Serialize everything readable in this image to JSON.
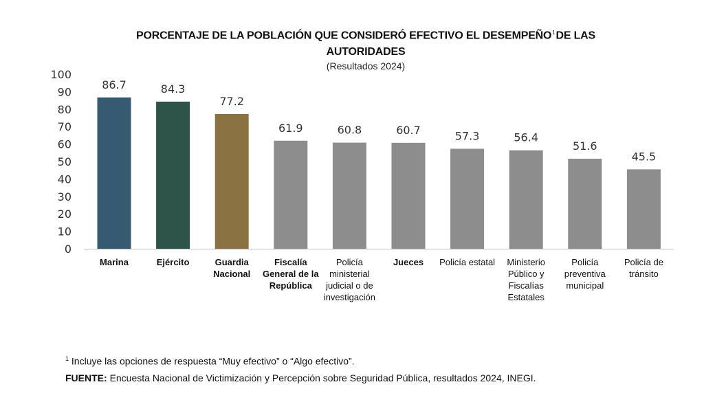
{
  "title": {
    "line1": "PORCENTAJE DE LA POBLACIÓN QUE CONSIDERÓ EFECTIVO EL DESEMPEÑO",
    "footnote_mark": "1",
    "line1_end": "DE LAS",
    "line2": "AUTORIDADES"
  },
  "subtitle": "(Resultados 2024)",
  "colors": {
    "marina": "#355a72",
    "ejercito": "#2e5348",
    "guardia": "#8b7243",
    "other": "#8d8d8d",
    "axis": "#bfbfbf"
  },
  "chart_data": {
    "type": "bar",
    "categories": [
      "Marina",
      "Ejército",
      "Guardia Nacional",
      "Fiscalía General de la República",
      "Policía ministerial judicial o de investigación",
      "Jueces",
      "Policía estatal",
      "Ministerio Público y Fiscalías Estatales",
      "Policía preventiva municipal",
      "Policía de tránsito"
    ],
    "category_lines": [
      [
        "Marina"
      ],
      [
        "Ejército"
      ],
      [
        "Guardia",
        "Nacional"
      ],
      [
        "Fiscalía",
        "General de la",
        "República"
      ],
      [
        "Policía",
        "ministerial",
        "judicial o de",
        "investigación"
      ],
      [
        "Jueces"
      ],
      [
        "Policía estatal"
      ],
      [
        "Ministerio",
        "Público y",
        "Fiscalías",
        "Estatales"
      ],
      [
        "Policía",
        "preventiva",
        "municipal"
      ],
      [
        "Policía de",
        "tránsito"
      ]
    ],
    "bold_labels": [
      true,
      true,
      true,
      true,
      false,
      true,
      false,
      false,
      false,
      false
    ],
    "values": [
      86.7,
      84.3,
      77.2,
      61.9,
      60.8,
      60.7,
      57.3,
      56.4,
      51.6,
      45.5
    ],
    "value_labels": [
      "86.7",
      "84.3",
      "77.2",
      "61.9",
      "60.8",
      "60.7",
      "57.3",
      "56.4",
      "51.6",
      "45.5"
    ],
    "bar_colors": [
      "#355a72",
      "#2e5348",
      "#8b7243",
      "#8d8d8d",
      "#8d8d8d",
      "#8d8d8d",
      "#8d8d8d",
      "#8d8d8d",
      "#8d8d8d",
      "#8d8d8d"
    ],
    "title": "PORCENTAJE DE LA POBLACIÓN QUE CONSIDERÓ EFECTIVO EL DESEMPEÑO DE LAS AUTORIDADES",
    "subtitle": "(Resultados 2024)",
    "xlabel": "",
    "ylabel": "",
    "ylim": [
      0,
      100
    ],
    "yticks": [
      0,
      10,
      20,
      30,
      40,
      50,
      60,
      70,
      80,
      90,
      100
    ],
    "grid": false,
    "legend": "none"
  },
  "footnote": {
    "mark": "1",
    "text": "Incluye las opciones de respuesta “Muy efectivo” o “Algo efectivo”."
  },
  "source": {
    "label": "FUENTE:",
    "text": "Encuesta Nacional de Victimización y Percepción sobre Seguridad Pública, resultados 2024, INEGI."
  }
}
